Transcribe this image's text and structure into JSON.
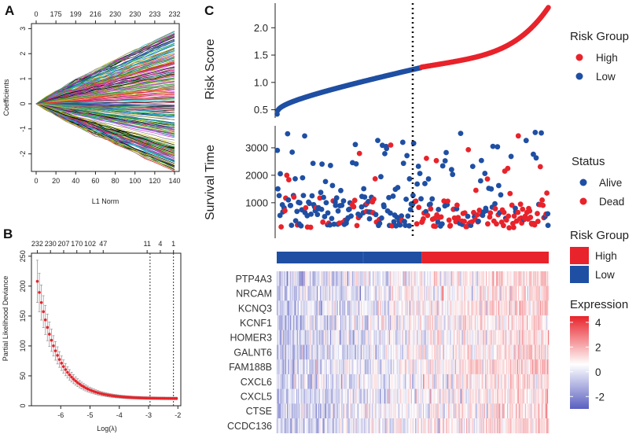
{
  "panels": {
    "a": "A",
    "b": "B",
    "c": "C"
  },
  "colors": {
    "high": "#e8232b",
    "low": "#1f4fa3",
    "expr_high": "#e8232b",
    "expr_mid": "#ffffff",
    "expr_low": "#5a5fc0"
  },
  "chart_data": [
    {
      "id": "A",
      "type": "line",
      "title": "",
      "xlabel": "L1 Norm",
      "ylabel": "Coefficients",
      "xlim": [
        0,
        140
      ],
      "ylim": [
        -2.7,
        3.2
      ],
      "x_ticks": [
        "0",
        "20",
        "40",
        "60",
        "80",
        "100",
        "120",
        "140"
      ],
      "x_tick_values": [
        0,
        20,
        40,
        60,
        80,
        100,
        120,
        140
      ],
      "y_ticks": [
        "-2",
        "-1",
        "0",
        "1",
        "2",
        "3"
      ],
      "y_tick_values": [
        -2,
        -1,
        0,
        1,
        2,
        3
      ],
      "top_ticks": [
        "0",
        "175",
        "199",
        "216",
        "230",
        "230",
        "233",
        "232"
      ],
      "series_count": 232,
      "endpoint_range": [
        -2.7,
        2.9
      ]
    },
    {
      "id": "B",
      "type": "scatter",
      "title": "",
      "xlabel": "Log(λ)",
      "ylabel": "Partial Likelihood Deviance",
      "xlim": [
        -7.0,
        -1.9
      ],
      "ylim": [
        0,
        255
      ],
      "x_ticks": [
        "-6",
        "-5",
        "-4",
        "-3",
        "-2"
      ],
      "x_tick_values": [
        -6,
        -5,
        -4,
        -3,
        -2
      ],
      "y_ticks": [
        "0",
        "50",
        "100",
        "150",
        "200",
        "250"
      ],
      "y_tick_values": [
        0,
        50,
        100,
        150,
        200,
        250
      ],
      "top_ticks": [
        "232",
        "230",
        "207",
        "170",
        "102",
        "47",
        "11",
        "4",
        "1"
      ],
      "top_tick_values": [
        -6.8,
        -6.35,
        -5.9,
        -5.45,
        -5.0,
        -4.55,
        -3.05,
        -2.6,
        -2.15
      ],
      "vlines": [
        -2.95,
        -2.15
      ],
      "curve": {
        "x_start": -6.8,
        "x_end": -2.05,
        "y_start": 208,
        "floor": 12,
        "decay": 1.45
      }
    },
    {
      "id": "C-risk",
      "type": "scatter",
      "ylabel": "Risk Score",
      "y_ticks": [
        "0.5",
        "1.0",
        "1.5",
        "2.0"
      ],
      "y_tick_values": [
        0.5,
        1.0,
        1.5,
        2.0
      ],
      "ylim": [
        0.35,
        2.45
      ],
      "n_points": 320,
      "cutoff_index": 170,
      "score_at_cutoff": 1.27,
      "score_min": 0.42,
      "score_max": 2.37,
      "legend_title": "Risk Group",
      "legend": [
        "High",
        "Low"
      ]
    },
    {
      "id": "C-survival",
      "type": "scatter",
      "ylabel": "Survival Time",
      "y_ticks": [
        "1000",
        "2000",
        "3000"
      ],
      "y_tick_values": [
        1000,
        2000,
        3000
      ],
      "ylim": [
        -150,
        3800
      ],
      "legend_title": "Status",
      "legend": [
        "Alive",
        "Dead"
      ]
    },
    {
      "id": "C-heatmap",
      "type": "heatmap",
      "rows": [
        "PTP4A3",
        "NRCAM",
        "KCNQ3",
        "KCNF1",
        "HOMER3",
        "GALNT6",
        "FAM188B",
        "CXCL6",
        "CXCL5",
        "CTSE",
        "CCDC136"
      ],
      "group_bar_title": "Risk Group",
      "group_bar_legend": [
        "High",
        "Low"
      ],
      "color_title": "Expression",
      "color_ticks": [
        "4",
        "2",
        "0",
        "-2"
      ],
      "color_tick_values": [
        4,
        2,
        0,
        -2
      ],
      "vlim": [
        -3,
        4.5
      ]
    }
  ]
}
